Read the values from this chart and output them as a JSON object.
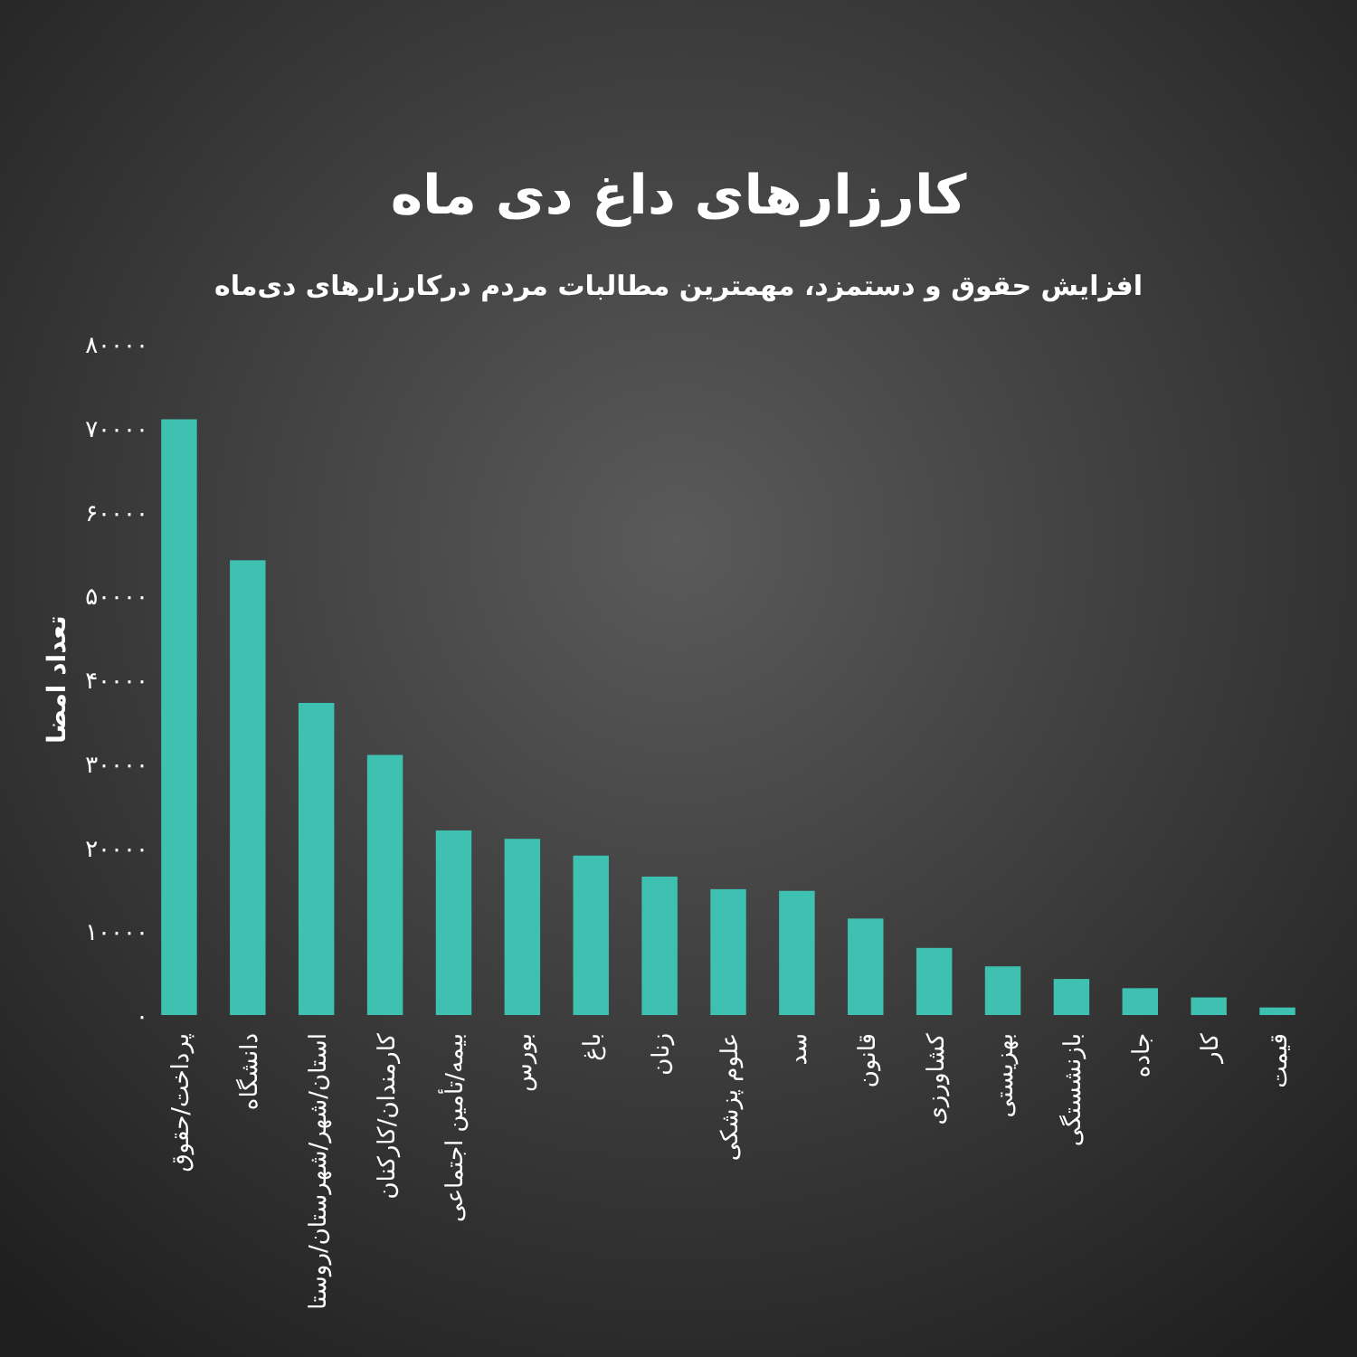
{
  "chart_data": {
    "type": "bar",
    "title": "کارزارهای داغ دی ماه",
    "subtitle": "افزایش حقوق و دستمزد، مهمترین مطالبات مردم درکارزارهای دی‌ماه",
    "ylabel": "تعداد امضا",
    "categories": [
      "پرداخت/حقوق",
      "دانشگاه",
      "استان/شهر/شهرستان/روستا",
      "کارمندان/کارکنان",
      "بیمه/تأمین اجتماعی",
      "بورس",
      "باغ",
      "زنان",
      "علوم پزشکی",
      "سد",
      "قانون",
      "کشاورزی",
      "بهزیستی",
      "بازنشستگی",
      "جاده",
      "کار",
      "قیمت"
    ],
    "values": [
      71000,
      54200,
      37200,
      31000,
      22000,
      21000,
      19000,
      16500,
      15000,
      14800,
      11500,
      8000,
      5800,
      4300,
      3200,
      2100,
      900
    ],
    "color": "#3fc1b2",
    "ylim": [
      0,
      80000
    ],
    "yticks": [
      {
        "value": 0,
        "label": "۰"
      },
      {
        "value": 10000,
        "label": "۱۰۰۰۰"
      },
      {
        "value": 20000,
        "label": "۲۰۰۰۰"
      },
      {
        "value": 30000,
        "label": "۳۰۰۰۰"
      },
      {
        "value": 40000,
        "label": "۴۰۰۰۰"
      },
      {
        "value": 50000,
        "label": "۵۰۰۰۰"
      },
      {
        "value": 60000,
        "label": "۶۰۰۰۰"
      },
      {
        "value": 70000,
        "label": "۷۰۰۰۰"
      },
      {
        "value": 80000,
        "label": "۸۰۰۰۰"
      }
    ]
  }
}
